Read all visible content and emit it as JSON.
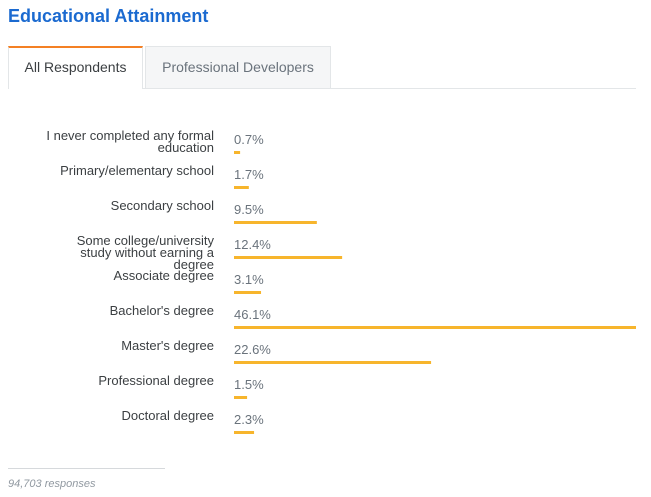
{
  "title": "Educational Attainment",
  "tabs": {
    "active": "All Respondents",
    "inactive": "Professional Developers"
  },
  "footer": {
    "responses": "94,703 responses"
  },
  "colors": {
    "bar": "#f7b52c",
    "title": "#1b6ad0",
    "tab_accent": "#f48024"
  },
  "chart_data": {
    "type": "bar",
    "orientation": "horizontal",
    "categories": [
      "I never completed any formal education",
      "Primary/elementary school",
      "Secondary school",
      "Some college/university study without earning a degree",
      "Associate degree",
      "Bachelor's degree",
      "Master's degree",
      "Professional degree",
      "Doctoral degree"
    ],
    "values": [
      0.7,
      1.7,
      9.5,
      12.4,
      3.1,
      46.1,
      22.6,
      1.5,
      2.3
    ],
    "value_labels": [
      "0.7%",
      "1.7%",
      "9.5%",
      "12.4%",
      "3.1%",
      "46.1%",
      "22.6%",
      "1.5%",
      "2.3%"
    ],
    "unit": "%",
    "xlim": [
      0,
      46.1
    ]
  }
}
